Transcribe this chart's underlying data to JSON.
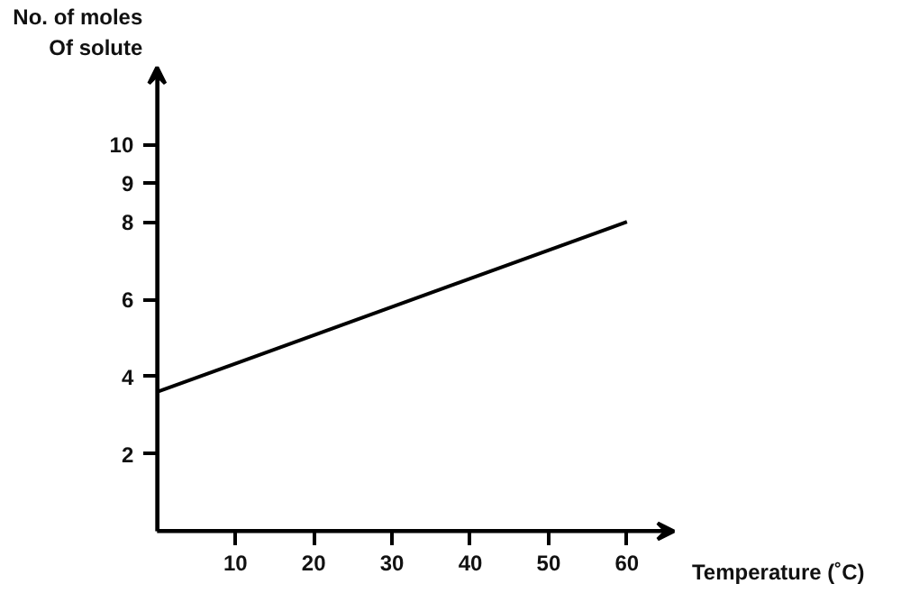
{
  "chart_data": {
    "type": "line",
    "xlabel": "Temperature (˚C)",
    "ylabel": "No. of moles\nOf solute",
    "x": [
      0,
      60
    ],
    "series": [
      {
        "color": "#000000",
        "values": [
          3.6,
          8
        ]
      }
    ],
    "xlim": [
      0,
      66
    ],
    "ylim": [
      0,
      12
    ],
    "xticks": [
      10,
      20,
      30,
      40,
      50,
      60
    ],
    "yticks": [
      2,
      4,
      6,
      8,
      9,
      10
    ],
    "grid": false,
    "marker": "none",
    "line_style": "solid"
  }
}
